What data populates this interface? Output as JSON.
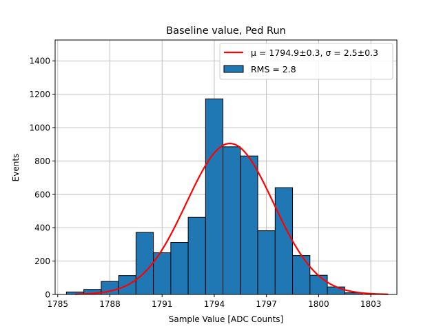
{
  "chart_data": {
    "type": "bar",
    "title": "Baseline value, Ped Run",
    "xlabel": "Sample Value [ADC Counts]",
    "ylabel": "Events",
    "xlim": [
      1784.85,
      1804.5
    ],
    "ylim": [
      0,
      1525
    ],
    "grid": true,
    "legend_position": "top-right",
    "xticks": [
      1785,
      1788,
      1791,
      1794,
      1797,
      1800,
      1803
    ],
    "xtick_labels": [
      "1785",
      "1788",
      "1791",
      "1794",
      "1797",
      "1800",
      "1803"
    ],
    "yticks": [
      0,
      200,
      400,
      600,
      800,
      1000,
      1200,
      1400
    ],
    "ytick_labels": [
      "0",
      "200",
      "400",
      "600",
      "800",
      "1000",
      "1200",
      "1400"
    ],
    "bins": [
      {
        "left": 1785.5,
        "right": 1786.5,
        "value": 15
      },
      {
        "left": 1786.5,
        "right": 1787.5,
        "value": 30
      },
      {
        "left": 1787.5,
        "right": 1788.5,
        "value": 78
      },
      {
        "left": 1788.5,
        "right": 1789.5,
        "value": 113
      },
      {
        "left": 1789.5,
        "right": 1790.5,
        "value": 372
      },
      {
        "left": 1790.5,
        "right": 1791.5,
        "value": 250
      },
      {
        "left": 1791.5,
        "right": 1792.5,
        "value": 312
      },
      {
        "left": 1792.5,
        "right": 1793.5,
        "value": 462
      },
      {
        "left": 1793.5,
        "right": 1794.5,
        "value": 1172
      },
      {
        "left": 1794.5,
        "right": 1795.5,
        "value": 885
      },
      {
        "left": 1795.5,
        "right": 1796.5,
        "value": 830
      },
      {
        "left": 1796.5,
        "right": 1797.5,
        "value": 382
      },
      {
        "left": 1797.5,
        "right": 1798.5,
        "value": 640
      },
      {
        "left": 1798.5,
        "right": 1799.5,
        "value": 233
      },
      {
        "left": 1799.5,
        "right": 1800.5,
        "value": 115
      },
      {
        "left": 1800.5,
        "right": 1801.5,
        "value": 45
      },
      {
        "left": 1801.5,
        "right": 1802.5,
        "value": 10
      }
    ],
    "fit": {
      "label": "μ = 1794.9±0.3, σ = 2.5±0.3",
      "mu": 1794.9,
      "sigma": 2.5,
      "amplitude": 905,
      "x_range": [
        1786.0,
        1804.0
      ],
      "color": "#ff0000"
    },
    "hist_label": "RMS = 2.8",
    "bar_color": "#1f77b4",
    "edge_color": "#000000"
  }
}
